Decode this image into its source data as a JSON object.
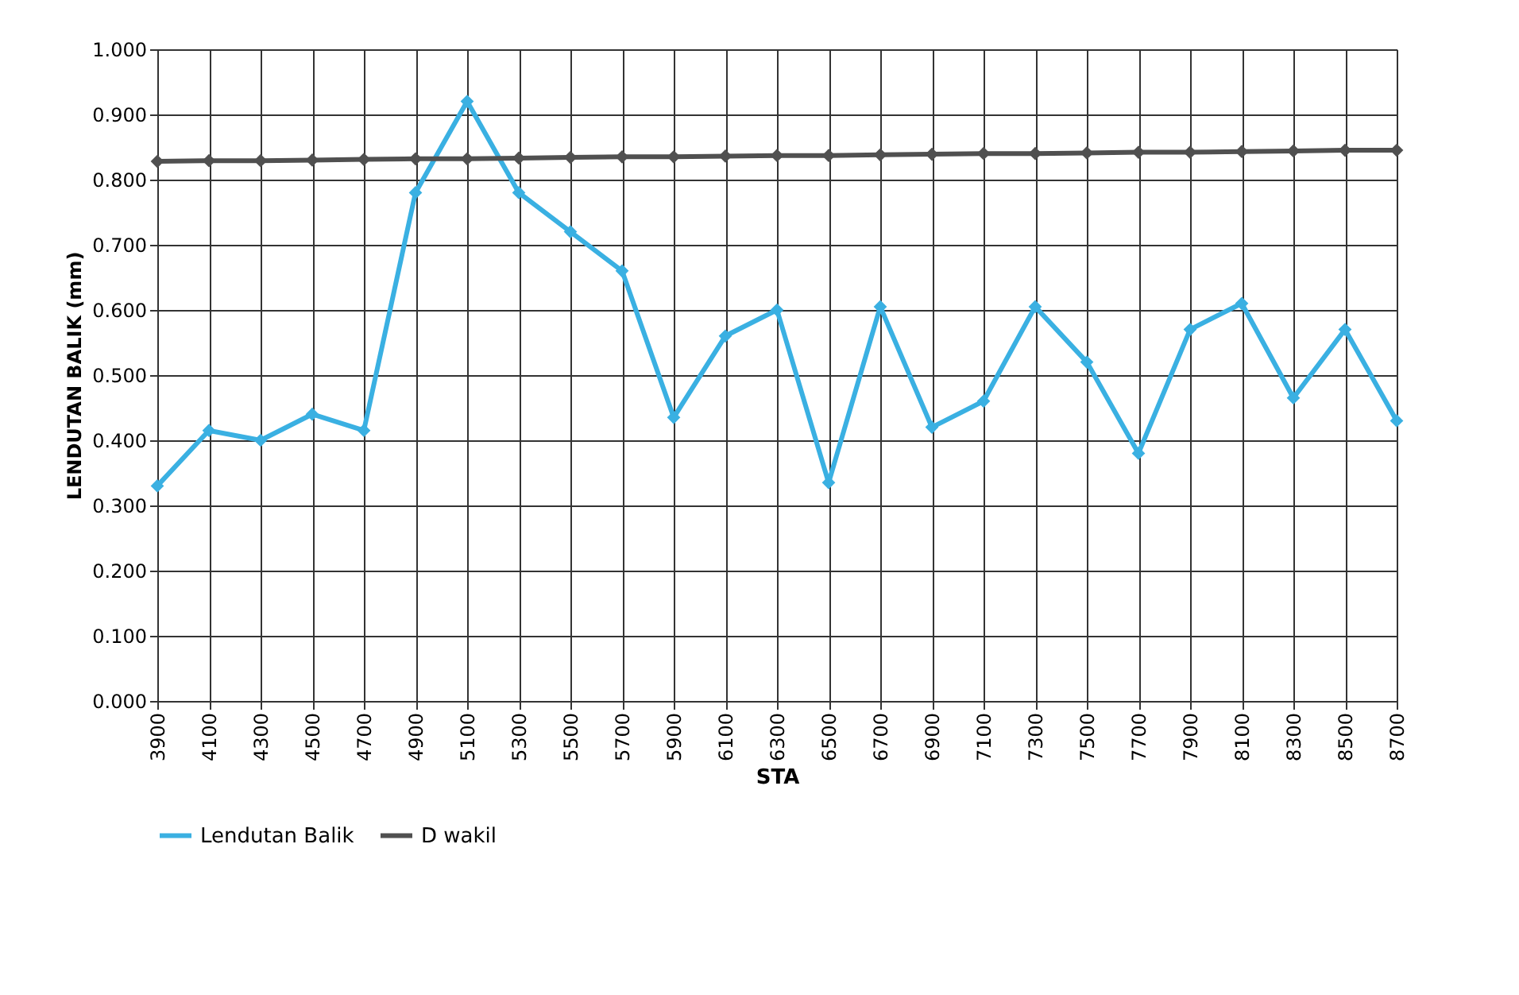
{
  "chart_data": {
    "type": "line",
    "xlabel": "STA",
    "ylabel": "LENDUTAN BALIK (mm)",
    "categories": [
      "3900",
      "4100",
      "4300",
      "4500",
      "4700",
      "4900",
      "5100",
      "5300",
      "5500",
      "5700",
      "5900",
      "6100",
      "6300",
      "6500",
      "6700",
      "6900",
      "7100",
      "7300",
      "7500",
      "7700",
      "7900",
      "8100",
      "8300",
      "8500",
      "8700"
    ],
    "series": [
      {
        "name": "Lendutan Balik",
        "color": "#3ab0e2",
        "values": [
          0.33,
          0.415,
          0.4,
          0.44,
          0.415,
          0.78,
          0.92,
          0.78,
          0.72,
          0.66,
          0.435,
          0.56,
          0.6,
          0.335,
          0.605,
          0.42,
          0.46,
          0.605,
          0.52,
          0.38,
          0.57,
          0.61,
          0.465,
          0.57,
          0.43
        ]
      },
      {
        "name": "D wakil",
        "color": "#505050",
        "values": [
          0.828,
          0.829,
          0.829,
          0.83,
          0.831,
          0.832,
          0.832,
          0.833,
          0.834,
          0.835,
          0.835,
          0.836,
          0.837,
          0.837,
          0.838,
          0.839,
          0.84,
          0.84,
          0.841,
          0.842,
          0.842,
          0.843,
          0.844,
          0.845,
          0.845
        ]
      }
    ],
    "ylim": [
      0,
      1
    ],
    "yticks": [
      {
        "value": 0,
        "label": "0.000"
      },
      {
        "value": 0.1,
        "label": "0.100"
      },
      {
        "value": 0.2,
        "label": "0.200"
      },
      {
        "value": 0.3,
        "label": "0.300"
      },
      {
        "value": 0.4,
        "label": "0.400"
      },
      {
        "value": 0.5,
        "label": "0.500"
      },
      {
        "value": 0.6,
        "label": "0.600"
      },
      {
        "value": 0.7,
        "label": "0.700"
      },
      {
        "value": 0.8,
        "label": "0.800"
      },
      {
        "value": 0.9,
        "label": "0.900"
      },
      {
        "value": 1,
        "label": "1.000"
      }
    ],
    "grid": true,
    "legend": "bottom",
    "marker": "diamond",
    "line_style": "solid"
  }
}
